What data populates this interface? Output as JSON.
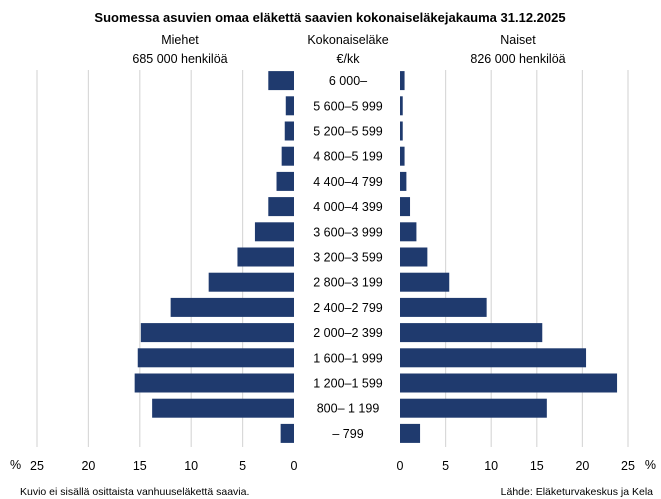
{
  "chart_data": {
    "type": "bar",
    "orientation": "horizontal-butterfly",
    "title": "Suomessa asuvien omaa eläkettä saavien kokonaiseläkejakauma 31.12.2025",
    "center_header": [
      "Kokonaiseläke",
      "€/kk"
    ],
    "left_header": [
      "Miehet",
      "685 000 henkilöä"
    ],
    "right_header": [
      "Naiset",
      "826 000 henkilöä"
    ],
    "categories": [
      "6 000–",
      "5 600–5 999",
      "5 200–5 599",
      "4 800–5 199",
      "4 400–4 799",
      "4 000–4 399",
      "3 600–3 999",
      "3 200–3 599",
      "2 800–3 199",
      "2 400–2 799",
      "2 000–2 399",
      "1 600–1 999",
      "1 200–1 599",
      "800– 1 199",
      "– 799"
    ],
    "series": [
      {
        "name": "Miehet",
        "side": "left",
        "values": [
          2.5,
          0.8,
          0.9,
          1.2,
          1.7,
          2.5,
          3.8,
          5.5,
          8.3,
          12.0,
          14.9,
          15.2,
          15.5,
          13.8,
          1.3
        ]
      },
      {
        "name": "Naiset",
        "side": "right",
        "values": [
          0.5,
          0.3,
          0.3,
          0.5,
          0.7,
          1.1,
          1.8,
          3.0,
          5.4,
          9.5,
          15.6,
          20.4,
          23.8,
          16.1,
          2.2
        ]
      }
    ],
    "left_axis": {
      "min": 0,
      "max": 25,
      "ticks": [
        25,
        20,
        15,
        10,
        5,
        0
      ],
      "unit": "%"
    },
    "right_axis": {
      "min": 0,
      "max": 25,
      "ticks": [
        0,
        5,
        10,
        15,
        20,
        25
      ],
      "unit": "%"
    },
    "grid": true,
    "bar_color": "#1f3a6e",
    "footnote_left": "Kuvio ei sisällä osittaista vanhuuseläkettä saavia.",
    "footnote_right": "Lähde: Eläketurvakeskus ja Kela"
  }
}
